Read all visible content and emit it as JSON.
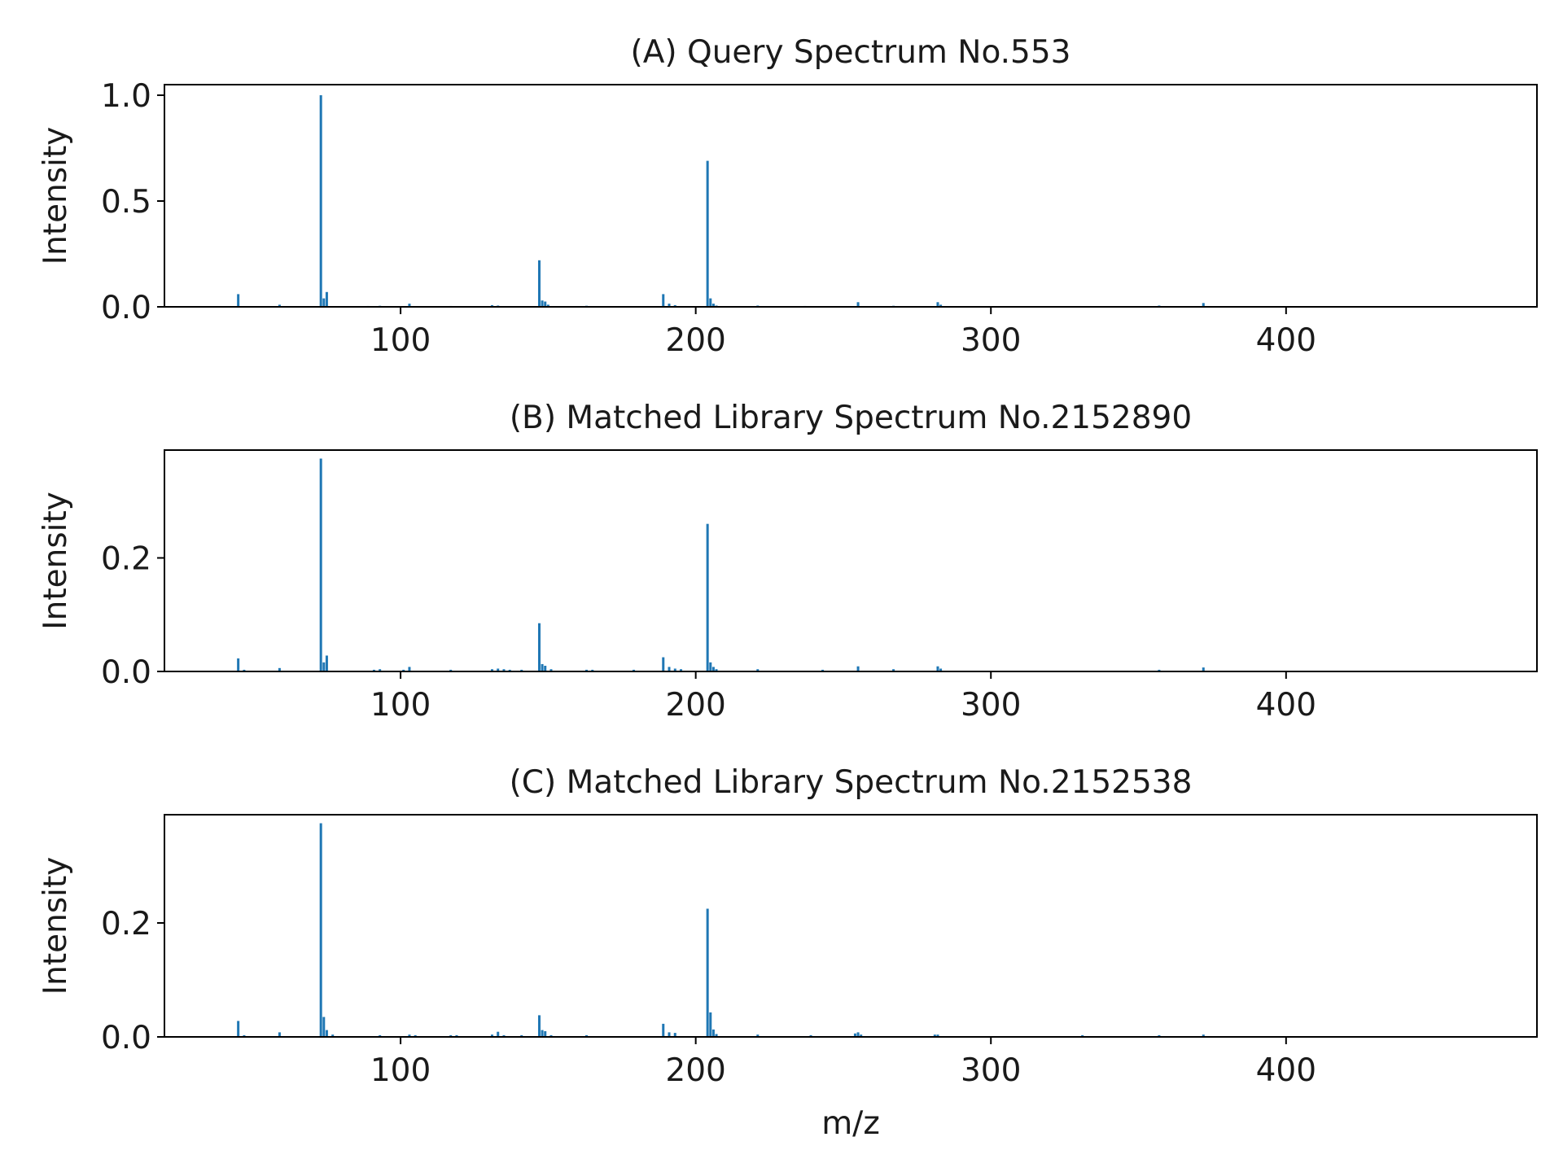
{
  "figure": {
    "xlabel": "m/z",
    "bar_color": "#1f77b4"
  },
  "chart_data": [
    {
      "type": "bar",
      "title": "(A) Query Spectrum No.553",
      "xlabel": "",
      "ylabel": "Intensity",
      "xlim": [
        20,
        485
      ],
      "ylim": [
        0,
        1.05
      ],
      "xticks": [
        100,
        200,
        300,
        400
      ],
      "xtick_labels": [
        "100",
        "200",
        "300",
        "400"
      ],
      "yticks": [
        0.0,
        0.5,
        1.0
      ],
      "ytick_labels": [
        "0.0",
        "0.5",
        "1.0"
      ],
      "x": [
        45,
        59,
        73,
        74,
        75,
        89,
        93,
        103,
        117,
        131,
        133,
        147,
        148,
        149,
        150,
        163,
        189,
        191,
        193,
        204,
        205,
        206,
        207,
        221,
        237,
        255,
        267,
        282,
        283,
        357,
        372
      ],
      "values": [
        0.06,
        0.01,
        1.0,
        0.04,
        0.07,
        0.004,
        0.005,
        0.015,
        0.004,
        0.008,
        0.006,
        0.22,
        0.03,
        0.025,
        0.01,
        0.005,
        0.06,
        0.015,
        0.008,
        0.69,
        0.04,
        0.015,
        0.006,
        0.006,
        0.004,
        0.022,
        0.005,
        0.022,
        0.01,
        0.006,
        0.018
      ]
    },
    {
      "type": "bar",
      "title": "(B) Matched Library Spectrum No.2152890",
      "xlabel": "",
      "ylabel": "Intensity",
      "xlim": [
        20,
        485
      ],
      "ylim": [
        0,
        0.39
      ],
      "xticks": [
        100,
        200,
        300,
        400
      ],
      "xtick_labels": [
        "100",
        "200",
        "300",
        "400"
      ],
      "yticks": [
        0.0,
        0.2
      ],
      "ytick_labels": [
        "0.0",
        "0.2"
      ],
      "x": [
        45,
        47,
        59,
        73,
        74,
        75,
        91,
        93,
        101,
        103,
        117,
        131,
        133,
        135,
        137,
        141,
        147,
        148,
        149,
        151,
        163,
        165,
        179,
        189,
        191,
        193,
        195,
        204,
        205,
        206,
        207,
        221,
        243,
        255,
        267,
        282,
        283,
        357,
        372
      ],
      "values": [
        0.023,
        0.003,
        0.006,
        0.375,
        0.016,
        0.028,
        0.003,
        0.004,
        0.003,
        0.008,
        0.003,
        0.004,
        0.005,
        0.004,
        0.003,
        0.003,
        0.085,
        0.013,
        0.01,
        0.004,
        0.003,
        0.003,
        0.003,
        0.025,
        0.008,
        0.005,
        0.004,
        0.26,
        0.016,
        0.008,
        0.004,
        0.004,
        0.003,
        0.009,
        0.004,
        0.009,
        0.005,
        0.003,
        0.007
      ]
    },
    {
      "type": "bar",
      "title": "(C) Matched Library Spectrum No.2152538",
      "xlabel": "m/z",
      "ylabel": "Intensity",
      "xlim": [
        20,
        485
      ],
      "ylim": [
        0,
        0.39
      ],
      "xticks": [
        100,
        200,
        300,
        400
      ],
      "xtick_labels": [
        "100",
        "200",
        "300",
        "400"
      ],
      "yticks": [
        0.0,
        0.2
      ],
      "ytick_labels": [
        "0.0",
        "0.2"
      ],
      "x": [
        45,
        47,
        59,
        73,
        74,
        75,
        77,
        93,
        103,
        105,
        117,
        119,
        131,
        133,
        135,
        141,
        147,
        148,
        149,
        151,
        163,
        189,
        191,
        193,
        204,
        205,
        206,
        207,
        221,
        239,
        254,
        255,
        256,
        281,
        282,
        331,
        357,
        372
      ],
      "values": [
        0.028,
        0.003,
        0.008,
        0.375,
        0.035,
        0.012,
        0.004,
        0.003,
        0.004,
        0.003,
        0.003,
        0.003,
        0.004,
        0.009,
        0.003,
        0.003,
        0.038,
        0.012,
        0.01,
        0.003,
        0.003,
        0.023,
        0.008,
        0.007,
        0.225,
        0.043,
        0.013,
        0.005,
        0.004,
        0.003,
        0.006,
        0.008,
        0.004,
        0.004,
        0.004,
        0.003,
        0.003,
        0.004
      ]
    }
  ]
}
